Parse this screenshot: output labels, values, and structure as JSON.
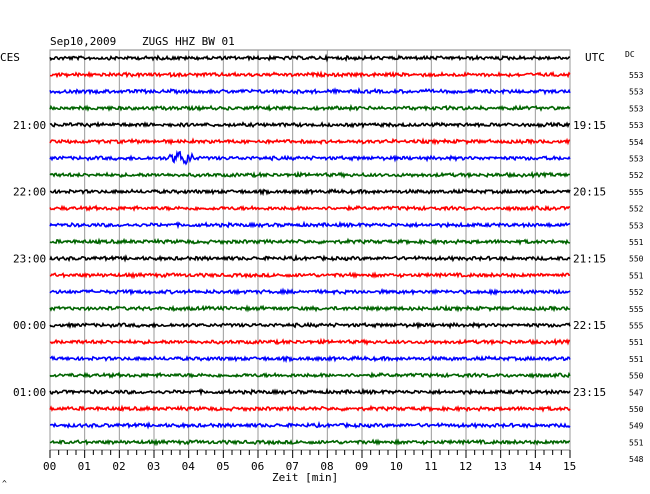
{
  "header": {
    "date": "Sep10,2009",
    "station": "ZUGS HHZ BW 01",
    "left_tz": "CES",
    "right_tz": "UTC",
    "dc_label": "DC"
  },
  "time_axis": {
    "label": "Zeit [min]",
    "ticks": [
      "00",
      "01",
      "02",
      "03",
      "04",
      "05",
      "06",
      "07",
      "08",
      "09",
      "10",
      "11",
      "12",
      "13",
      "14",
      "15"
    ]
  },
  "left_hour_labels": [
    "21:00",
    "22:00",
    "23:00",
    "00:00",
    "01:00"
  ],
  "right_hour_labels": [
    "19:15",
    "20:15",
    "21:15",
    "22:15",
    "23:15"
  ],
  "dc_values": [
    "553",
    "553",
    "553",
    "553",
    "554",
    "553",
    "552",
    "555",
    "552",
    "553",
    "551",
    "550",
    "551",
    "552",
    "555",
    "555",
    "551",
    "551",
    "550",
    "547",
    "550",
    "549",
    "551",
    "548"
  ],
  "trace_colors": [
    "#000000",
    "#ff0000",
    "#0000ff",
    "#006400"
  ],
  "event": {
    "trace_index": 6,
    "minute": 3.8
  },
  "corner_mark": "^"
}
